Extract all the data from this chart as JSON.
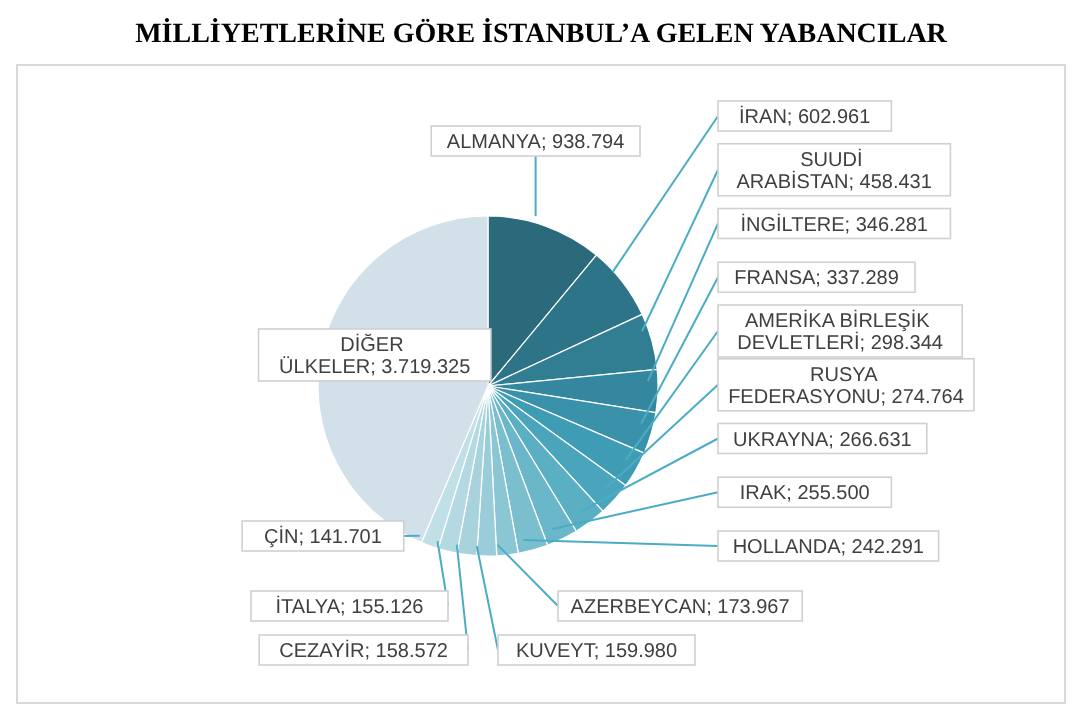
{
  "chart_data": {
    "type": "pie",
    "title": "MİLLİYETLERİNE GÖRE İSTANBUL’A GELEN YABANCILAR",
    "categories": [
      "ALMANYA",
      "İRAN",
      "SUUDİ ARABİSTAN",
      "İNGİLTERE",
      "FRANSA",
      "AMERİKA BİRLEŞİK DEVLETLERİ",
      "RUSYA FEDERASYONU",
      "UKRAYNA",
      "IRAK",
      "HOLLANDA",
      "AZERBEYCAN",
      "KUVEYT",
      "CEZAYİR",
      "İTALYA",
      "ÇİN",
      "DİĞER ÜLKELER"
    ],
    "values": [
      938794,
      602961,
      458431,
      346281,
      337289,
      298344,
      274764,
      266631,
      255500,
      242291,
      173967,
      159980,
      158572,
      155126,
      141701,
      3719325
    ],
    "colors": [
      "#2b6a7b",
      "#2e7488",
      "#317e93",
      "#34879e",
      "#3a92aa",
      "#3f9cb5",
      "#4aa5bc",
      "#5aafc3",
      "#6ab7c9",
      "#7bbfcf",
      "#8bc6d4",
      "#9acdd9",
      "#a8d3dd",
      "#b5d9e2",
      "#c1dfe6",
      "#d2e1e9"
    ],
    "value_labels": [
      "938.794",
      "602.961",
      "458.431",
      "346.281",
      "337.289",
      "298.344",
      "274.764",
      "266.631",
      "255.500",
      "242.291",
      "173.967",
      "159.980",
      "158.572",
      "155.126",
      "141.701",
      "3.719.325"
    ]
  }
}
